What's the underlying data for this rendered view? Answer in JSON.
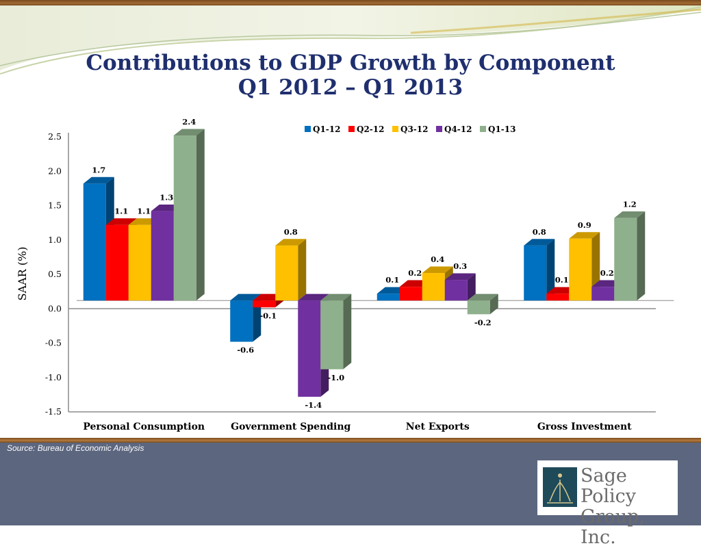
{
  "title_line1": "Contributions to GDP Growth by Component",
  "title_line2": "Q1 2012 – Q1 2013",
  "source": "Source: Bureau of Economic Analysis",
  "logo": {
    "line1": "Sage Policy",
    "line2": "Group, Inc."
  },
  "chart_data": {
    "type": "bar",
    "ylabel": "SAAR (%)",
    "ylim": [
      -1.5,
      2.5
    ],
    "yticks": [
      "2.5",
      "2.0",
      "1.5",
      "1.0",
      "0.5",
      "0.0",
      "-0.5",
      "-1.0",
      "-1.5"
    ],
    "categories": [
      "Personal Consumption",
      "Government Spending",
      "Net Exports",
      "Gross Investment"
    ],
    "legend_position": "top-right",
    "series": [
      {
        "name": "Q1-12",
        "color": "#0070c0",
        "values": [
          1.7,
          -0.6,
          0.1,
          0.8
        ],
        "labels": [
          "1.7",
          "-0.6",
          "0.1",
          "0.8"
        ]
      },
      {
        "name": "Q2-12",
        "color": "#ff0000",
        "values": [
          1.1,
          -0.1,
          0.2,
          0.1
        ],
        "labels": [
          "1.1",
          "-0.1",
          "0.2",
          "0.1"
        ]
      },
      {
        "name": "Q3-12",
        "color": "#ffc000",
        "values": [
          1.1,
          0.8,
          0.4,
          0.9
        ],
        "labels": [
          "1.1",
          "0.8",
          "0.4",
          "0.9"
        ]
      },
      {
        "name": "Q4-12",
        "color": "#7030a0",
        "values": [
          1.3,
          -1.4,
          0.3,
          0.2
        ],
        "labels": [
          "1.3",
          "-1.4",
          "0.3",
          "0.2"
        ]
      },
      {
        "name": "Q1-13",
        "color": "#8fb08c",
        "values": [
          2.4,
          -1.0,
          -0.2,
          1.2
        ],
        "labels": [
          "2.4",
          "-1.0",
          "-0.2",
          "1.2"
        ]
      }
    ]
  }
}
